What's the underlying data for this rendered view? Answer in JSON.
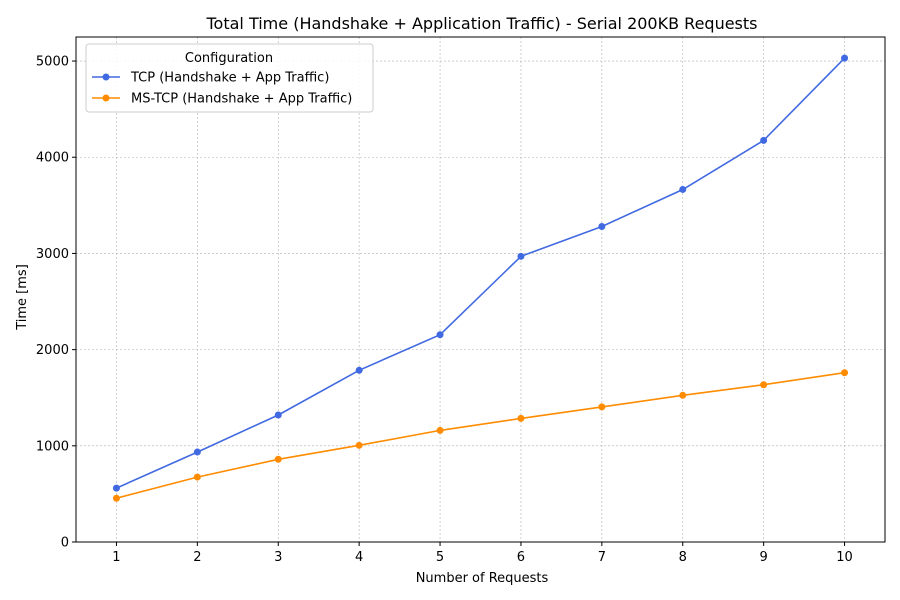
{
  "chart_data": {
    "type": "line",
    "title": "Total Time (Handshake + Application Traffic) - Serial 200KB Requests",
    "xlabel": "Number of Requests",
    "ylabel": "Time [ms]",
    "x": [
      1,
      2,
      3,
      4,
      5,
      6,
      7,
      8,
      9,
      10
    ],
    "xlim": [
      0.5,
      10.5
    ],
    "ylim": [
      0,
      5250
    ],
    "yticks": [
      0,
      1000,
      2000,
      3000,
      4000,
      5000
    ],
    "grid": true,
    "legend": {
      "title": "Configuration",
      "placement": "top-left"
    },
    "series": [
      {
        "name": "TCP (Handshake + App Traffic)",
        "color": "#4169e1",
        "values": [
          560,
          935,
          1320,
          1785,
          2155,
          2970,
          3280,
          3665,
          4175,
          5030
        ]
      },
      {
        "name": "MS-TCP (Handshake + App Traffic)",
        "color": "#ff8c00",
        "values": [
          455,
          675,
          860,
          1005,
          1160,
          1285,
          1405,
          1525,
          1635,
          1760
        ]
      }
    ]
  }
}
